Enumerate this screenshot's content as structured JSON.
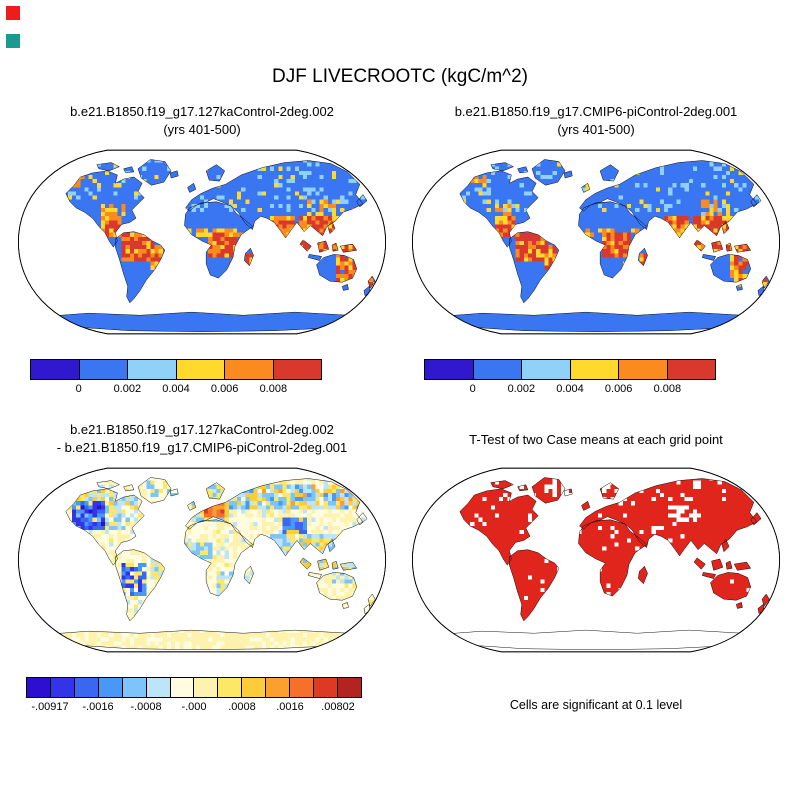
{
  "figure": {
    "title": "DJF LIVECROOTC (kgC/m^2)"
  },
  "panels": {
    "top_left": {
      "title_line1": "b.e21.B1850.f19_g17.127kaControl-2deg.002",
      "title_line2": "(yrs 401-500)"
    },
    "top_right": {
      "title_line1": "b.e21.B1850.f19_g17.CMIP6-piControl-2deg.001",
      "title_line2": "(yrs 401-500)"
    },
    "bottom_left": {
      "title_line1": "b.e21.B1850.f19_g17.127kaControl-2deg.002",
      "title_line2": "- b.e21.B1850.f19_g17.CMIP6-piControl-2deg.001"
    },
    "bottom_right": {
      "title": "T-Test of two Case means at each grid point",
      "caption": "Cells are significant at 0.1 level"
    }
  },
  "colorbars": {
    "absolute": {
      "colors": [
        "#3018ce",
        "#3a76f2",
        "#90d2f7",
        "#ffd92b",
        "#fb8b1e",
        "#d8392c"
      ],
      "labels": [
        "0",
        "0.002",
        "0.004",
        "0.006",
        "0.008"
      ]
    },
    "difference": {
      "colors": [
        "#2d0fd0",
        "#3333e8",
        "#3a67f0",
        "#4a98f5",
        "#7ec4f8",
        "#bce5fa",
        "#fffce0",
        "#fdf3ae",
        "#fde767",
        "#fccd38",
        "#fb9f2e",
        "#f4702b",
        "#dd3a26",
        "#b32320"
      ],
      "labels": [
        "-.00917",
        "-.0016",
        "-.0008",
        "-.000",
        ".0008",
        ".0016",
        ".00802"
      ]
    }
  },
  "palette": {
    "significant_red": "#e0261c",
    "ocean_white": "#ffffff",
    "outline_black": "#000000",
    "marker_red": "#ee1c1c",
    "marker_teal": "#1d9a8f"
  },
  "chart_data": [
    {
      "type": "heatmap",
      "subtype": "global_map",
      "title": "b.e21.B1850.f19_g17.127kaControl-2deg.002 (yrs 401-500)",
      "variable": "LIVECROOTC",
      "season": "DJF",
      "units": "kgC/m^2",
      "projection": "robinson",
      "levels": [
        0,
        0.002,
        0.004,
        0.006,
        0.008
      ],
      "level_colors": [
        "#3018ce",
        "#3a76f2",
        "#90d2f7",
        "#ffd92b",
        "#fb8b1e",
        "#d8392c"
      ],
      "pattern_summary": "Most land 0-0.002 (blue); tropical forest regions (Amazon, Congo, SE Asia, Central America, Madagascar, coastal Brazil) exceed 0.008 (red) with orange and yellow margins; Antarctica and deserts near zero."
    },
    {
      "type": "heatmap",
      "subtype": "global_map",
      "title": "b.e21.B1850.f19_g17.CMIP6-piControl-2deg.001 (yrs 401-500)",
      "variable": "LIVECROOTC",
      "season": "DJF",
      "units": "kgC/m^2",
      "projection": "robinson",
      "levels": [
        0,
        0.002,
        0.004,
        0.006,
        0.008
      ],
      "level_colors": [
        "#3018ce",
        "#3a76f2",
        "#90d2f7",
        "#ffd92b",
        "#fb8b1e",
        "#d8392c"
      ],
      "pattern_summary": "Very similar to the 127ka control: blue over most land with red/orange tropical forest maxima."
    },
    {
      "type": "heatmap",
      "subtype": "global_map_difference",
      "title": "b.e21.B1850.f19_g17.127kaControl-2deg.002 - b.e21.B1850.f19_g17.CMIP6-piControl-2deg.001",
      "variable": "LIVECROOTC difference",
      "units": "kgC/m^2",
      "projection": "robinson",
      "min": -0.00917,
      "max": 0.00802,
      "levels": [
        -0.0016,
        -0.0008,
        0,
        0.0008,
        0.0016
      ],
      "level_colors": [
        "#2d0fd0",
        "#3333e8",
        "#3a67f0",
        "#4a98f5",
        "#7ec4f8",
        "#bce5fa",
        "#fffce0",
        "#fdf3ae",
        "#fde767",
        "#fccd38",
        "#fb9f2e",
        "#f4702b",
        "#dd3a26",
        "#b32320"
      ],
      "pattern_summary": "Negative (blue) anomalies over western North America, the Andes and patchy northern Eurasia; a strong positive (red) patch over central Europe; scattered yellow/orange over Siberia; near-zero pale yellow elsewhere including Antarctica."
    },
    {
      "type": "heatmap",
      "subtype": "significance_mask",
      "title": "T-Test of two Case means at each grid point",
      "caption": "Cells are significant at 0.1 level",
      "significant_color": "#e0261c",
      "pattern_summary": "Nearly all vegetated land cells are significant (red); Antarctica, most of Greenland and scattered mid/high-latitude cells are not significant (white)."
    }
  ]
}
